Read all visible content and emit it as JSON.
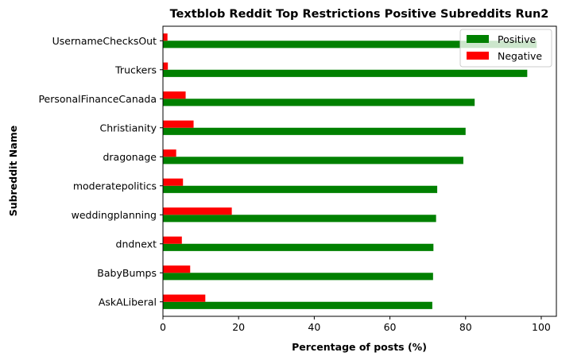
{
  "chart_data": {
    "type": "bar",
    "orientation": "horizontal",
    "title": "Textblob Reddit Top Restrictions Positive Subreddits Run2",
    "xlabel": "Percentage of posts (%)",
    "ylabel": "Subreddit Name",
    "xlim": [
      0,
      104
    ],
    "xticks": [
      0,
      20,
      40,
      60,
      80,
      100
    ],
    "grid": false,
    "legend_position": "top-right",
    "categories": [
      "AskALiberal",
      "BabyBumps",
      "dndnext",
      "weddingplanning",
      "moderatepolitics",
      "dragonage",
      "Christianity",
      "PersonalFinanceCanada",
      "Truckers",
      "UsernameChecksOut"
    ],
    "series": [
      {
        "name": "Positive",
        "color": "#008000",
        "values": [
          71.2,
          71.4,
          71.5,
          72.2,
          72.5,
          79.4,
          80.0,
          82.4,
          96.3,
          98.8
        ]
      },
      {
        "name": "Negative",
        "color": "#ff0000",
        "values": [
          11.2,
          7.2,
          5.0,
          18.2,
          5.3,
          3.5,
          8.1,
          6.0,
          1.3,
          1.2
        ]
      }
    ]
  }
}
